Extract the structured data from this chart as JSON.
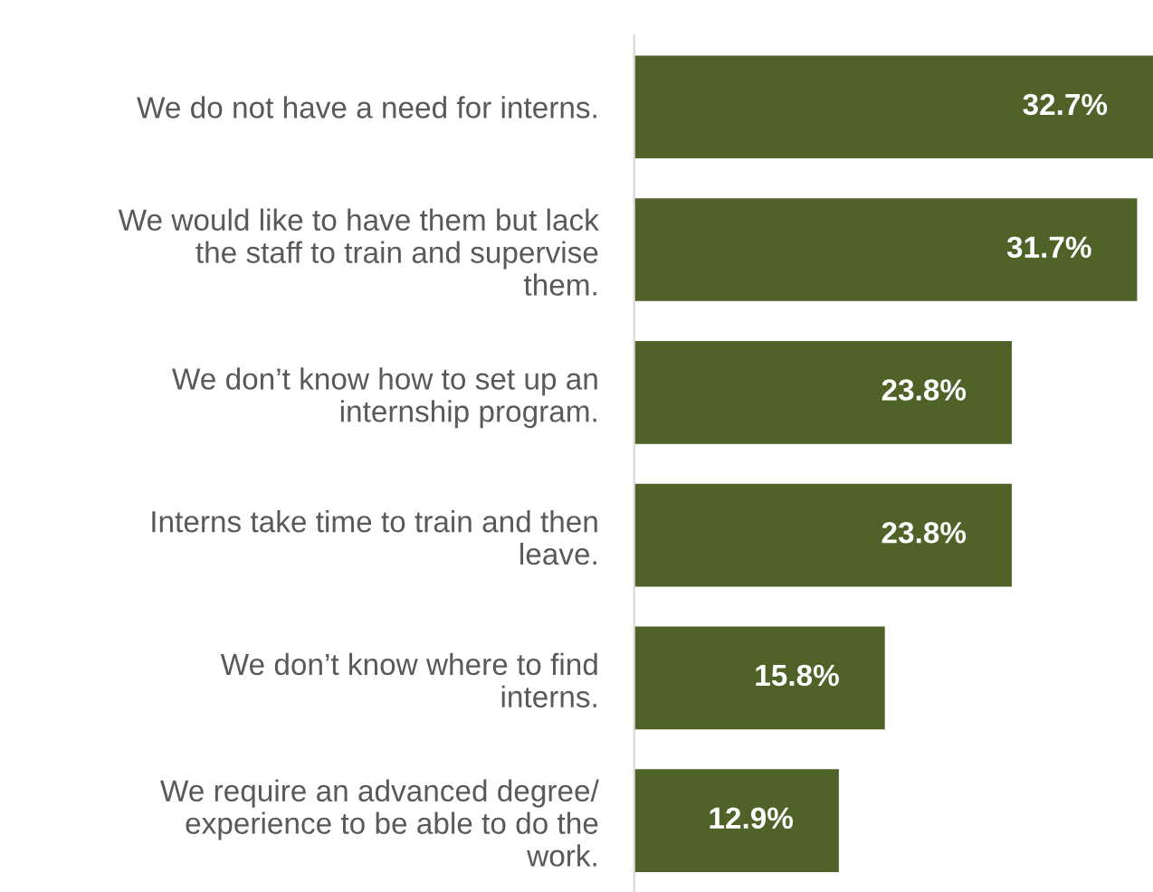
{
  "chart_data": {
    "type": "bar",
    "orientation": "horizontal",
    "categories": [
      "We do not have a need for interns.",
      "We would like to have them but lack\nthe staff to train and supervise\nthem.",
      "We don’t know how to set up an\ninternship program.",
      "Interns take time to train and then\nleave.",
      "We don’t know where to find\ninterns.",
      "We require an advanced degree/\nexperience to be able to do the\nwork."
    ],
    "values": [
      32.7,
      31.7,
      23.8,
      23.8,
      15.8,
      12.9
    ],
    "value_labels": [
      "32.7%",
      "31.7%",
      "23.8%",
      "23.8%",
      "15.8%",
      "12.9%"
    ],
    "color": "#4f6228",
    "grid": false,
    "legend": false
  }
}
